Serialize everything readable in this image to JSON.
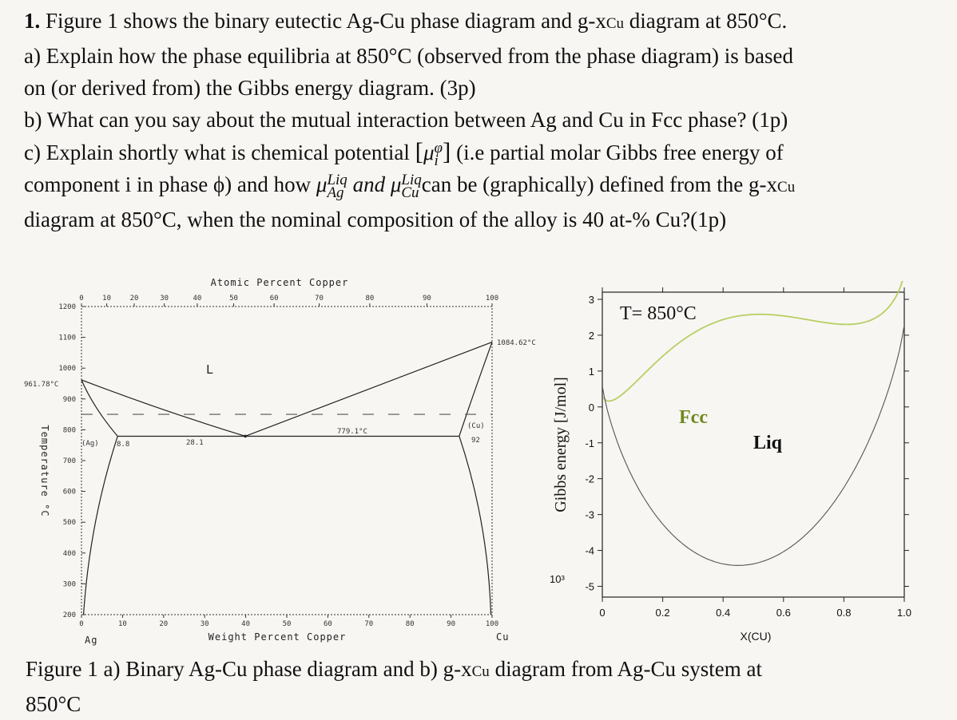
{
  "question": {
    "number": "1.",
    "intro_a": "Figure 1 shows the binary eutectic Ag-Cu phase diagram and g-x",
    "intro_sub": "Cu",
    "intro_b": " diagram at 850°C.",
    "a_line1": "a) Explain how the phase equilibria at 850°C (observed from the phase diagram) is based",
    "a_line2": "on (or derived from) the Gibbs energy diagram. (3p)",
    "b_line": "b) What can you say about the mutual interaction between Ag and Cu in Fcc phase? (1p)",
    "c_line1_a": "c) Explain shortly what is chemical potential ",
    "c_mu_sup": "φ",
    "c_mu_sub": "i",
    "c_line1_b": " (i.e partial molar Gibbs free energy of",
    "c_line2_a": "component i in phase ϕ) and how ",
    "c_mu_liq": "Liq",
    "c_mu_ag": "Ag",
    "c_and": "and",
    "c_mu_cu": "Cu",
    "c_line2_b": "can be (graphically) defined from the g-x",
    "c_line2_sub": "Cu",
    "c_line3": "diagram at 850°C, when the nominal composition of the alloy is 40 at-% Cu?(1p)"
  },
  "phase_diagram": {
    "top_axis_title": "Atomic Percent Copper",
    "bottom_axis_title": "Weight Percent Copper",
    "y_axis_title": "Temperature °C",
    "left_element": "Ag",
    "right_element": "Cu",
    "top_ticks": [
      "0",
      "10",
      "20",
      "30",
      "40",
      "50",
      "60",
      "70",
      "80",
      "90",
      "100"
    ],
    "bottom_ticks": [
      "0",
      "10",
      "20",
      "30",
      "40",
      "50",
      "60",
      "70",
      "80",
      "90",
      "100"
    ],
    "y_ticks": [
      "1200",
      "1100",
      "1000",
      "900",
      "800",
      "700",
      "600",
      "500",
      "400",
      "300",
      "200"
    ],
    "label_liquid": "L",
    "label_ag": "(Ag)",
    "label_cu": "(Cu)",
    "ag_melting": "961.78°C",
    "cu_melting": "1084.62°C",
    "eutectic_temp": "779.1°C",
    "ag_solubility": "8.8",
    "eutectic_comp": "28.1",
    "cu_solubility": "92",
    "isotherm_temp": 850
  },
  "gibbs_diagram": {
    "title": "T= 850°C",
    "y_axis_title": "Gibbs energy [J/mol]",
    "x_axis_title": "X(CU)",
    "multiplier": "10³",
    "y_ticks": [
      "3",
      "2",
      "1",
      "0",
      "-1",
      "-2",
      "-3",
      "-4",
      "-5"
    ],
    "x_ticks": [
      "0",
      "0.2",
      "0.4",
      "0.6",
      "0.8",
      "1.0"
    ],
    "fcc_label": "Fcc",
    "liq_label": "Liq",
    "colors": {
      "fcc": "#b8cf63",
      "liq": "#555555",
      "fcc_label": "#6d8a1e"
    }
  },
  "caption": {
    "line1_a": "Figure 1 a) Binary Ag-Cu phase diagram and b) g-x",
    "line1_sub": "Cu",
    "line1_b": " diagram from Ag-Cu system at",
    "line2": "850°C"
  }
}
